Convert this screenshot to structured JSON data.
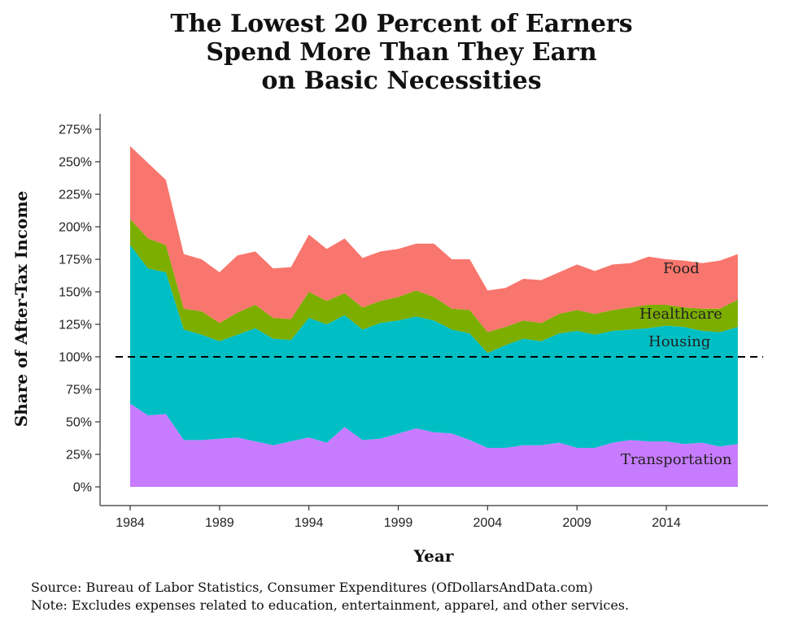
{
  "chart_data": {
    "type": "area",
    "stacked": true,
    "title_lines": [
      "The Lowest 20 Percent of Earners",
      "Spend More Than They Earn",
      "on Basic Necessities"
    ],
    "xlabel": "Year",
    "ylabel": "Share of After-Tax Income",
    "x": [
      1984,
      1985,
      1986,
      1987,
      1988,
      1989,
      1990,
      1991,
      1992,
      1993,
      1994,
      1995,
      1996,
      1997,
      1998,
      1999,
      2000,
      2001,
      2002,
      2003,
      2004,
      2005,
      2006,
      2007,
      2008,
      2009,
      2010,
      2011,
      2012,
      2013,
      2014,
      2015,
      2016,
      2017,
      2018
    ],
    "x_ticks": [
      1984,
      1989,
      1994,
      1999,
      2004,
      2009,
      2014
    ],
    "y_ticks": [
      0,
      25,
      50,
      75,
      100,
      125,
      150,
      175,
      200,
      225,
      250,
      275
    ],
    "y_tick_labels": [
      "0%",
      "25%",
      "50%",
      "75%",
      "100%",
      "125%",
      "150%",
      "175%",
      "200%",
      "225%",
      "250%",
      "275%"
    ],
    "ylim": [
      0,
      290
    ],
    "xlim": [
      1983.3,
      2019.6
    ],
    "reference_line": {
      "y": 100,
      "style": "dashed"
    },
    "series": [
      {
        "name": "Transportation",
        "color": "#C77CFF",
        "values": [
          64,
          55,
          56,
          36,
          36,
          37,
          38,
          35,
          32,
          35,
          38,
          34,
          46,
          36,
          37,
          41,
          45,
          42,
          41,
          36,
          30,
          30,
          32,
          32,
          34,
          30,
          30,
          34,
          36,
          35,
          35,
          33,
          34,
          31,
          33
        ]
      },
      {
        "name": "Housing",
        "color": "#00BFC4",
        "values": [
          122,
          113,
          109,
          85,
          81,
          75,
          79,
          87,
          82,
          78,
          92,
          91,
          86,
          85,
          89,
          87,
          86,
          86,
          80,
          82,
          73,
          79,
          82,
          80,
          84,
          90,
          87,
          86,
          85,
          87,
          89,
          90,
          86,
          88,
          90
        ]
      },
      {
        "name": "Healthcare",
        "color": "#7CAE00",
        "values": [
          20,
          23,
          21,
          16,
          18,
          14,
          17,
          18,
          16,
          16,
          20,
          18,
          17,
          17,
          17,
          18,
          20,
          18,
          16,
          18,
          16,
          14,
          14,
          14,
          15,
          16,
          16,
          16,
          17,
          18,
          16,
          15,
          17,
          18,
          21
        ]
      },
      {
        "name": "Food",
        "color": "#F8766D",
        "values": [
          56,
          58,
          50,
          42,
          40,
          39,
          44,
          41,
          38,
          40,
          44,
          40,
          42,
          38,
          38,
          37,
          36,
          41,
          38,
          39,
          32,
          30,
          32,
          33,
          32,
          35,
          33,
          35,
          34,
          37,
          35,
          36,
          35,
          37,
          35
        ]
      }
    ],
    "series_labels": {
      "food": "Food",
      "healthcare": "Healthcare",
      "housing": "Housing",
      "transportation": "Transportation"
    }
  },
  "footer": {
    "source": "Source:  Bureau of Labor Statistics, Consumer Expenditures (OfDollarsAndData.com)",
    "note": "Note:  Excludes expenses related to education, entertainment, apparel, and other services."
  }
}
